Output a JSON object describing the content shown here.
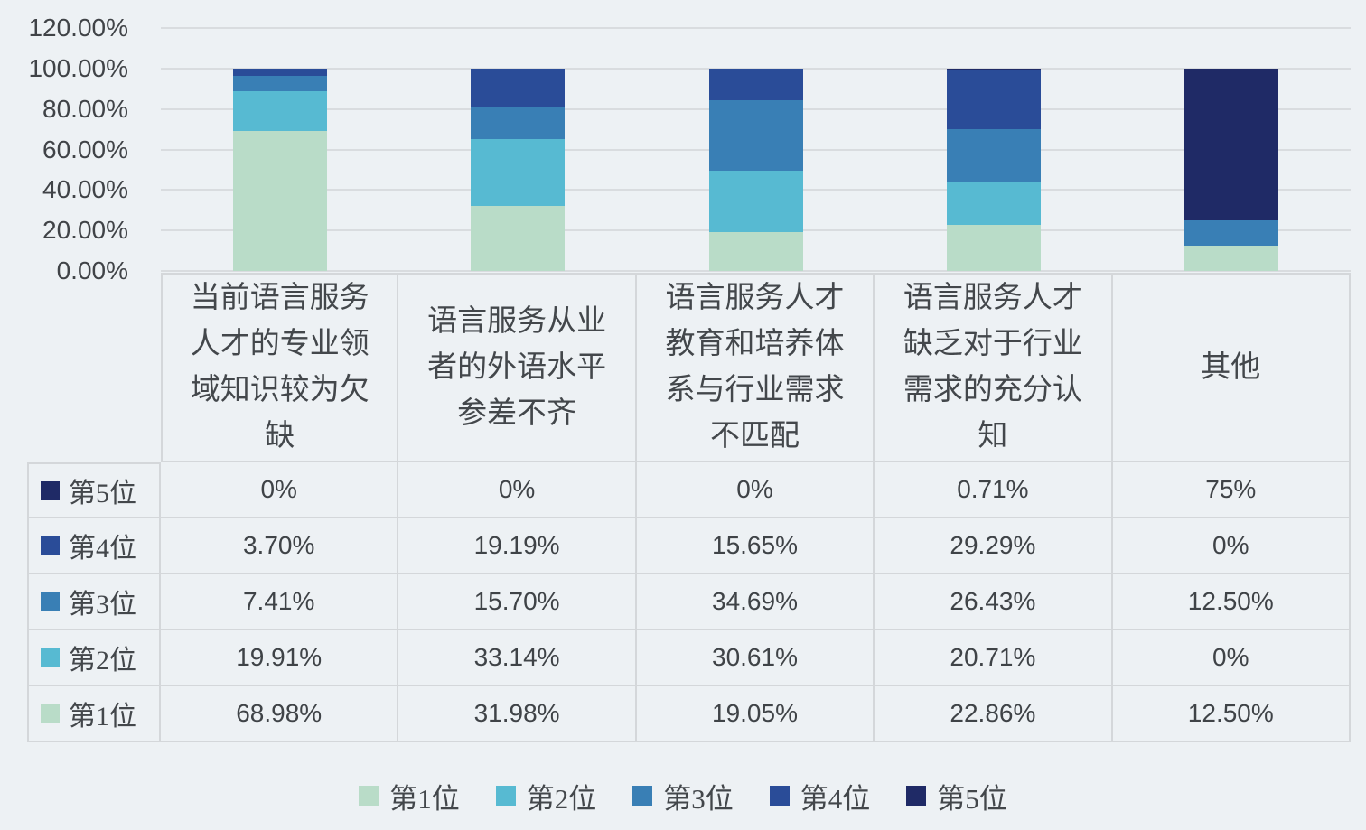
{
  "chart_data": {
    "type": "bar",
    "stacked": true,
    "stack_mode": "percent",
    "title": "",
    "xlabel": "",
    "ylabel": "",
    "categories": [
      "当前语言服务人才的专业领域知识较为欠缺",
      "语言服务从业者的外语水平参差不齐",
      "语言服务人才教育和培养体系与行业需求不匹配",
      "语言服务人才缺乏对于行业需求的充分认知",
      "其他"
    ],
    "series": [
      {
        "name": "第1位",
        "color": "#b9dcc8",
        "values": [
          68.98,
          31.98,
          19.05,
          22.86,
          12.5
        ]
      },
      {
        "name": "第2位",
        "color": "#57bad2",
        "values": [
          19.91,
          33.14,
          30.61,
          20.71,
          0
        ]
      },
      {
        "name": "第3位",
        "color": "#397fb5",
        "values": [
          7.41,
          15.7,
          34.69,
          26.43,
          12.5
        ]
      },
      {
        "name": "第4位",
        "color": "#2a4c98",
        "values": [
          3.7,
          19.19,
          15.65,
          29.29,
          0
        ]
      },
      {
        "name": "第5位",
        "color": "#1f2a66",
        "values": [
          0,
          0,
          0,
          0.71,
          75
        ]
      }
    ],
    "ylim": [
      0,
      120
    ],
    "y_ticks": [
      "120.00%",
      "100.00%",
      "80.00%",
      "60.00%",
      "40.00%",
      "20.00%",
      "0.00%"
    ],
    "grid": true,
    "legend_position": "bottom"
  },
  "table": {
    "headers": [
      "当前语言服务\n人才的专业领\n域知识较为欠\n缺",
      "语言服务从业\n者的外语水平\n参差不齐",
      "语言服务人才\n教育和培养体\n系与行业需求\n不匹配",
      "语言服务人才\n缺乏对于行业\n需求的充分认\n知",
      "其他"
    ],
    "rows": [
      {
        "label": "第5位",
        "values": [
          "0%",
          "0%",
          "0%",
          "0.71%",
          "75%"
        ]
      },
      {
        "label": "第4位",
        "values": [
          "3.70%",
          "19.19%",
          "15.65%",
          "29.29%",
          "0%"
        ]
      },
      {
        "label": "第3位",
        "values": [
          "7.41%",
          "15.70%",
          "34.69%",
          "26.43%",
          "12.50%"
        ]
      },
      {
        "label": "第2位",
        "values": [
          "19.91%",
          "33.14%",
          "30.61%",
          "20.71%",
          "0%"
        ]
      },
      {
        "label": "第1位",
        "values": [
          "68.98%",
          "31.98%",
          "19.05%",
          "22.86%",
          "12.50%"
        ]
      }
    ]
  },
  "colors": {
    "background": "#edf1f4",
    "gridline": "#d9dcdf",
    "table_border": "#d4d7da",
    "text": "#3f4347"
  }
}
